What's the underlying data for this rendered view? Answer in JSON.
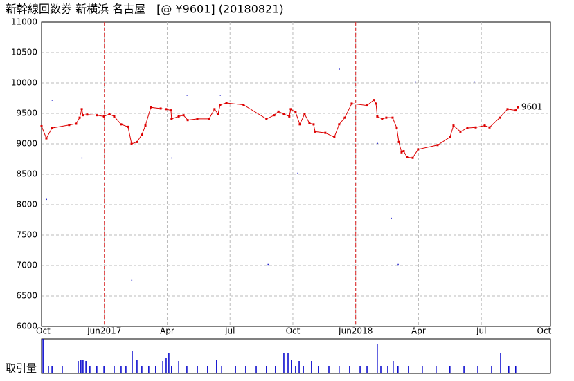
{
  "chart_data": {
    "type": "line",
    "title": "新幹線回数券 新横浜 名古屋　[@ ¥9601] (20180821)",
    "end_label": "9601",
    "volume_label": "取引量",
    "xlim": [
      0,
      24.3
    ],
    "xticks": [
      {
        "value": 0,
        "label": "Oct"
      },
      {
        "value": 3,
        "label": "Jun2017"
      },
      {
        "value": 6,
        "label": "Apr"
      },
      {
        "value": 9,
        "label": "Jul"
      },
      {
        "value": 12,
        "label": "Oct"
      },
      {
        "value": 15,
        "label": "Jun2018"
      },
      {
        "value": 18,
        "label": "Apr"
      },
      {
        "value": 21,
        "label": "Jul"
      },
      {
        "value": 24,
        "label": "Oct"
      }
    ],
    "vlines": [
      3,
      15
    ],
    "vline_color": "#dd2222",
    "ylim": [
      6000,
      11000
    ],
    "yticks": [
      6000,
      6500,
      7000,
      7500,
      8000,
      8500,
      9000,
      9500,
      10000,
      10500,
      11000
    ],
    "grid": true,
    "series": [
      {
        "color": "#dd0000",
        "x": [
          0,
          0.23,
          0.5,
          1.32,
          1.65,
          1.82,
          1.92,
          1.98,
          2.18,
          2.64,
          2.98,
          3.24,
          3.47,
          3.8,
          4.13,
          4.3,
          4.56,
          4.79,
          4.96,
          5.22,
          5.69,
          5.95,
          6.18,
          6.21,
          6.55,
          6.78,
          6.98,
          7.44,
          8.0,
          8.26,
          8.43,
          8.53,
          8.83,
          9.65,
          10.74,
          11.11,
          11.31,
          11.57,
          11.83,
          11.9,
          12.13,
          12.33,
          12.56,
          12.79,
          12.99,
          13.06,
          13.55,
          13.98,
          14.21,
          14.48,
          14.81,
          15.54,
          15.87,
          15.97,
          16.03,
          16.26,
          16.46,
          16.76,
          16.96,
          17.06,
          17.19,
          17.29,
          17.45,
          17.72,
          17.98,
          18.91,
          19.5,
          19.67,
          20.0,
          20.33,
          20.73,
          21.16,
          21.39,
          21.88,
          22.25,
          22.64,
          22.74
        ],
        "values": [
          9290,
          9090,
          9260,
          9310,
          9330,
          9430,
          9570,
          9470,
          9480,
          9470,
          9450,
          9490,
          9450,
          9320,
          9280,
          9000,
          9030,
          9150,
          9300,
          9600,
          9580,
          9570,
          9550,
          9410,
          9450,
          9470,
          9390,
          9410,
          9410,
          9570,
          9490,
          9640,
          9670,
          9640,
          9410,
          9470,
          9530,
          9490,
          9450,
          9570,
          9520,
          9320,
          9490,
          9340,
          9320,
          9200,
          9180,
          9110,
          9320,
          9430,
          9660,
          9630,
          9720,
          9660,
          9450,
          9410,
          9430,
          9430,
          9260,
          9030,
          8860,
          8880,
          8780,
          8770,
          8910,
          8980,
          9110,
          9300,
          9200,
          9260,
          9270,
          9300,
          9270,
          9430,
          9570,
          9550,
          9601
        ]
      }
    ],
    "dots": {
      "color": "#2222cc",
      "x": [
        0.23,
        0.5,
        1.92,
        4.3,
        6.21,
        6.94,
        8.53,
        10.81,
        12.23,
        14.21,
        16.03,
        16.69,
        17.02,
        17.85,
        20.66
      ],
      "values": [
        8090,
        9720,
        8770,
        6760,
        8770,
        9800,
        9800,
        7020,
        8520,
        10230,
        9010,
        7780,
        7020,
        10020,
        10020
      ]
    },
    "volume": {
      "color": "#0000cc",
      "ylim": [
        0,
        50
      ],
      "x": [
        0.07,
        0.33,
        0.5,
        0.99,
        1.75,
        1.88,
        1.98,
        2.12,
        2.31,
        2.64,
        2.98,
        3.47,
        3.8,
        4.03,
        4.33,
        4.56,
        4.79,
        5.12,
        5.45,
        5.79,
        5.95,
        6.08,
        6.21,
        6.55,
        6.94,
        7.44,
        7.93,
        8.36,
        8.6,
        9.26,
        9.75,
        10.25,
        10.74,
        11.17,
        11.57,
        11.77,
        11.93,
        12.13,
        12.3,
        12.5,
        12.89,
        13.22,
        13.72,
        14.21,
        14.71,
        15.21,
        15.54,
        16.03,
        16.2,
        16.53,
        16.79,
        17.02,
        17.52,
        18.18,
        18.84,
        19.5,
        20.17,
        20.83,
        21.49,
        21.92,
        22.31,
        22.64
      ],
      "values": [
        50,
        10,
        10,
        10,
        18,
        20,
        20,
        18,
        10,
        10,
        10,
        10,
        10,
        10,
        32,
        20,
        10,
        10,
        10,
        18,
        22,
        30,
        10,
        18,
        10,
        10,
        10,
        20,
        10,
        10,
        10,
        10,
        10,
        10,
        30,
        30,
        20,
        10,
        18,
        10,
        18,
        10,
        10,
        10,
        10,
        10,
        10,
        42,
        10,
        10,
        18,
        10,
        10,
        10,
        10,
        10,
        10,
        10,
        10,
        30,
        10,
        10
      ]
    }
  }
}
